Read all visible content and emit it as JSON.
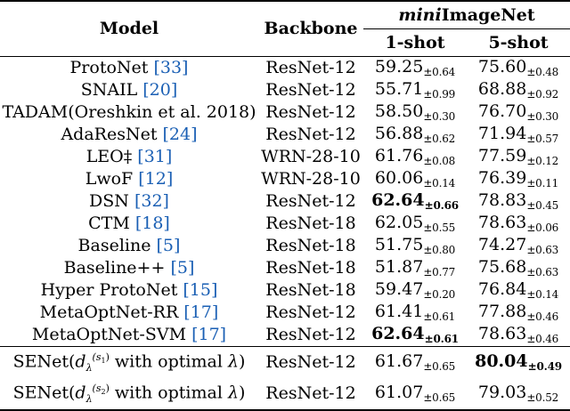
{
  "header": {
    "model": "Model",
    "backbone": "Backbone",
    "dataset_italic": "mini",
    "dataset_rest": "ImageNet",
    "shot1": "1-shot",
    "shot5": "5-shot"
  },
  "rows": [
    {
      "name": "ProtoNet ",
      "ref": "[33]",
      "backbone": "ResNet-12",
      "s1": "59.25",
      "s1pm": "±0.64",
      "s5": "75.60",
      "s5pm": "±0.48"
    },
    {
      "name": "SNAIL ",
      "ref": "[20]",
      "backbone": "ResNet-12",
      "s1": "55.71",
      "s1pm": "±0.99",
      "s5": "68.88",
      "s5pm": "±0.92"
    },
    {
      "name": "TADAM(Oreshkin et al. 2018)",
      "ref": "",
      "backbone": "ResNet-12",
      "s1": "58.50",
      "s1pm": "±0.30",
      "s5": "76.70",
      "s5pm": "±0.30"
    },
    {
      "name": "AdaResNet ",
      "ref": "[24]",
      "backbone": "ResNet-12",
      "s1": "56.88",
      "s1pm": "±0.62",
      "s5": "71.94",
      "s5pm": "±0.57"
    },
    {
      "name": "LEO‡ ",
      "ref": "[31]",
      "backbone": "WRN-28-10",
      "s1": "61.76",
      "s1pm": "±0.08",
      "s5": "77.59",
      "s5pm": "±0.12"
    },
    {
      "name": "LwoF ",
      "ref": "[12]",
      "backbone": "WRN-28-10",
      "s1": "60.06",
      "s1pm": "±0.14",
      "s5": "76.39",
      "s5pm": "±0.11"
    },
    {
      "name": "DSN ",
      "ref": "[32]",
      "backbone": "ResNet-12",
      "s1": "62.64",
      "s1pm": "±0.66",
      "s5": "78.83",
      "s5pm": "±0.45",
      "s1bold": true
    },
    {
      "name": "CTM ",
      "ref": "[18]",
      "backbone": "ResNet-18",
      "s1": "62.05",
      "s1pm": "±0.55",
      "s5": "78.63",
      "s5pm": "±0.06"
    },
    {
      "name": "Baseline ",
      "ref": "[5]",
      "backbone": "ResNet-18",
      "s1": "51.75",
      "s1pm": "±0.80",
      "s5": "74.27",
      "s5pm": "±0.63"
    },
    {
      "name": "Baseline++ ",
      "ref": "[5]",
      "backbone": "ResNet-18",
      "s1": "51.87",
      "s1pm": "±0.77",
      "s5": "75.68",
      "s5pm": "±0.63"
    },
    {
      "name": "Hyper ProtoNet ",
      "ref": "[15]",
      "backbone": "ResNet-18",
      "s1": "59.47",
      "s1pm": "±0.20",
      "s5": "76.84",
      "s5pm": "±0.14"
    },
    {
      "name": "MetaOptNet-RR ",
      "ref": "[17]",
      "backbone": "ResNet-12",
      "s1": "61.41",
      "s1pm": "±0.61",
      "s5": "77.88",
      "s5pm": "±0.46"
    },
    {
      "name": "MetaOptNet-SVM ",
      "ref": "[17]",
      "backbone": "ResNet-12",
      "s1": "62.64",
      "s1pm": "±0.61",
      "s5": "78.63",
      "s5pm": "±0.46",
      "s1bold": true
    }
  ],
  "ours": [
    {
      "prefix": "SENet(",
      "d": "d",
      "sub": "λ",
      "sup": "(s",
      "supsub": "1",
      "supclose": ")",
      "suffix": " with optimal ",
      "lam": "λ",
      "close": ")",
      "backbone": "ResNet-12",
      "s1": "61.67",
      "s1pm": "±0.65",
      "s5": "80.04",
      "s5pm": "±0.49",
      "s5bold": true
    },
    {
      "prefix": "SENet(",
      "d": "d",
      "sub": "λ",
      "sup": "(s",
      "supsub": "2",
      "supclose": ")",
      "suffix": " with optimal ",
      "lam": "λ",
      "close": ")",
      "backbone": "ResNet-12",
      "s1": "61.07",
      "s1pm": "±0.65",
      "s5": "79.03",
      "s5pm": "±0.52"
    }
  ]
}
